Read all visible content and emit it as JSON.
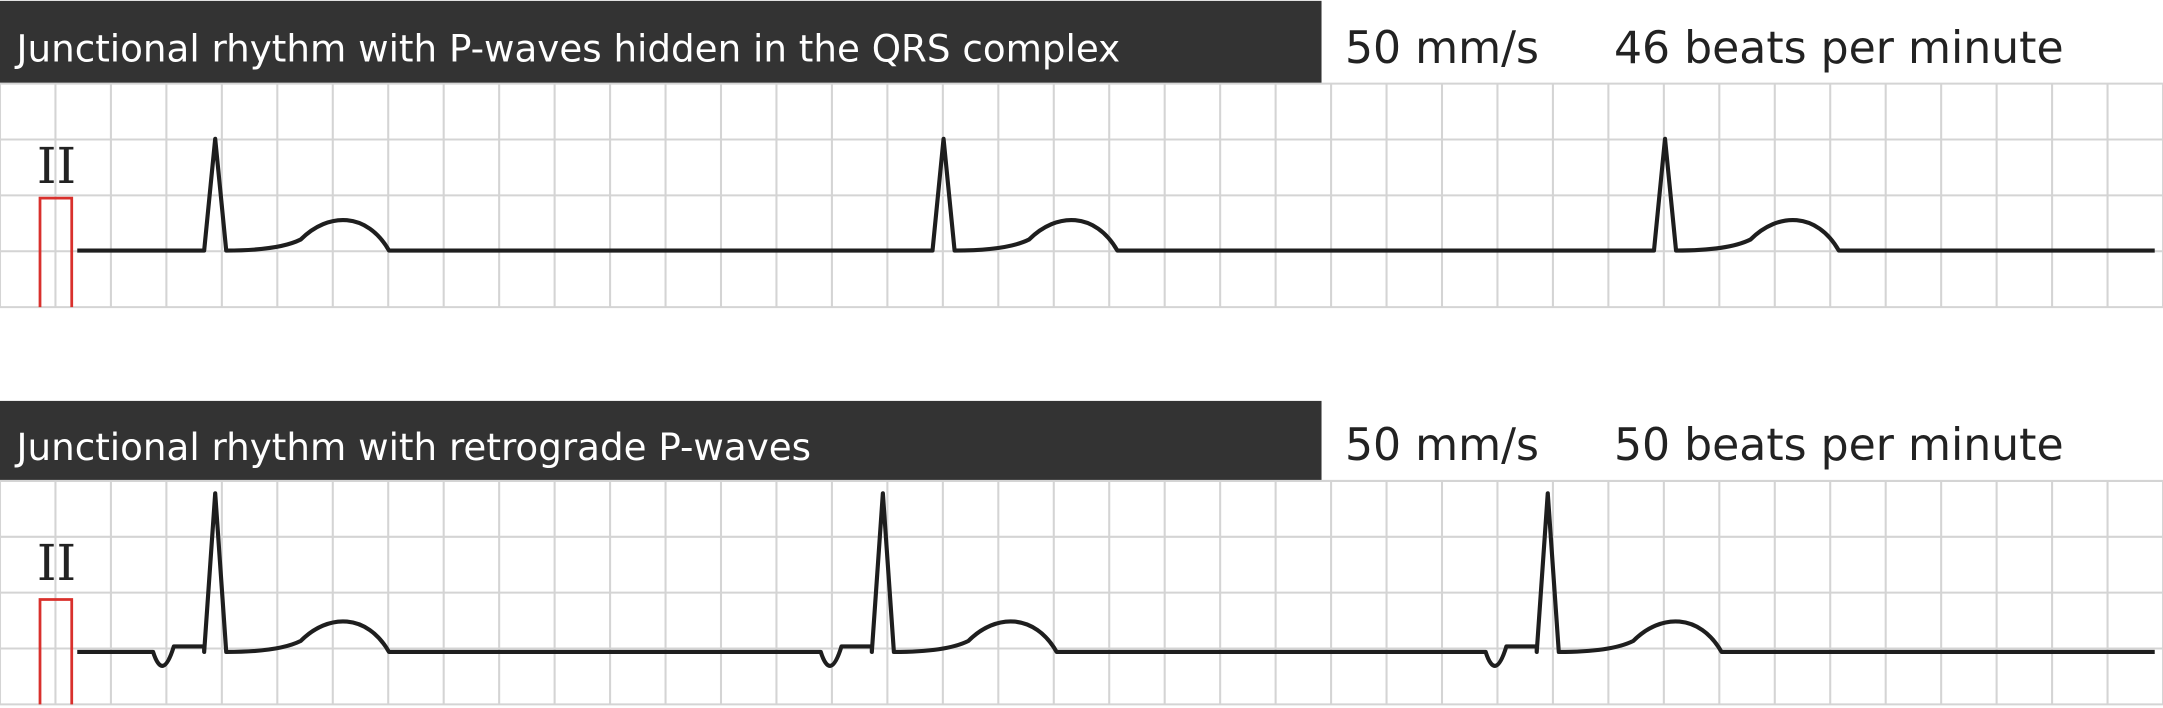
{
  "panels": [
    {
      "title": "Junctional rhythm with P-waves hidden in the QRS complex",
      "speed": "50 mm/s",
      "rate": "46 beats per minute",
      "lead": "II"
    },
    {
      "title": "Junctional rhythm with retrograde P-waves",
      "speed": "50 mm/s",
      "rate": "50 beats per minute",
      "lead": "II"
    }
  ]
}
